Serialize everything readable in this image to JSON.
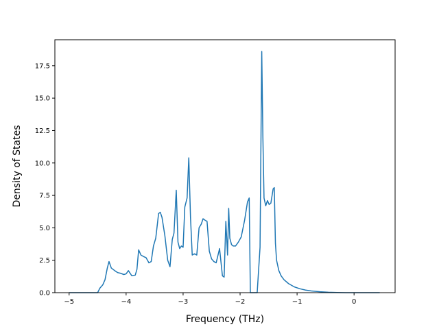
{
  "chart_data": {
    "type": "line",
    "title": "",
    "xlabel": "Frequency (THz)",
    "ylabel": "Density of States",
    "xlim": [
      -5.25,
      0.72
    ],
    "ylim": [
      0.0,
      19.5
    ],
    "grid": false,
    "legend": "none",
    "line_color": "#1f77b4",
    "x_ticks": [
      {
        "value": -5,
        "label": "−5"
      },
      {
        "value": -4,
        "label": "−4"
      },
      {
        "value": -3,
        "label": "−3"
      },
      {
        "value": -2,
        "label": "−2"
      },
      {
        "value": -1,
        "label": "−1"
      },
      {
        "value": 0,
        "label": "0"
      }
    ],
    "y_ticks": [
      {
        "value": 0.0,
        "label": "0.0"
      },
      {
        "value": 2.5,
        "label": "2.5"
      },
      {
        "value": 5.0,
        "label": "5.0"
      },
      {
        "value": 7.5,
        "label": "7.5"
      },
      {
        "value": 10.0,
        "label": "10.0"
      },
      {
        "value": 12.5,
        "label": "12.5"
      },
      {
        "value": 15.0,
        "label": "15.0"
      },
      {
        "value": 17.5,
        "label": "17.5"
      }
    ],
    "series": [
      {
        "x": [
          -5.0,
          -4.5,
          -4.46,
          -4.41,
          -4.37,
          -4.33,
          -4.3,
          -4.26,
          -4.2,
          -4.15,
          -4.1,
          -4.04,
          -4.0,
          -3.96,
          -3.9,
          -3.84,
          -3.81,
          -3.78,
          -3.74,
          -3.7,
          -3.65,
          -3.6,
          -3.56,
          -3.52,
          -3.48,
          -3.43,
          -3.4,
          -3.37,
          -3.32,
          -3.27,
          -3.23,
          -3.19,
          -3.16,
          -3.12,
          -3.09,
          -3.06,
          -3.03,
          -3.0,
          -2.97,
          -2.93,
          -2.9,
          -2.87,
          -2.84,
          -2.8,
          -2.76,
          -2.72,
          -2.68,
          -2.65,
          -2.62,
          -2.58,
          -2.54,
          -2.5,
          -2.46,
          -2.42,
          -2.36,
          -2.31,
          -2.28,
          -2.25,
          -2.22,
          -2.2,
          -2.18,
          -2.15,
          -2.12,
          -2.08,
          -2.03,
          -1.98,
          -1.92,
          -1.87,
          -1.84,
          -1.82,
          -1.8,
          -1.75,
          -1.7,
          -1.65,
          -1.62,
          -1.6,
          -1.58,
          -1.55,
          -1.52,
          -1.49,
          -1.46,
          -1.42,
          -1.4,
          -1.38,
          -1.36,
          -1.34,
          -1.32,
          -1.28,
          -1.23,
          -1.15,
          -1.05,
          -0.95,
          -0.85,
          -0.75,
          -0.6,
          -0.45,
          -0.3,
          -0.15,
          0.0,
          0.15,
          0.3,
          0.45
        ],
        "y": [
          0.0,
          0.0,
          0.35,
          0.6,
          1.0,
          1.9,
          2.4,
          1.9,
          1.7,
          1.55,
          1.5,
          1.4,
          1.45,
          1.7,
          1.3,
          1.35,
          1.8,
          3.3,
          2.9,
          2.8,
          2.7,
          2.3,
          2.4,
          3.6,
          4.2,
          6.1,
          6.2,
          5.8,
          4.4,
          2.5,
          2.0,
          4.1,
          4.6,
          7.9,
          3.9,
          3.4,
          3.6,
          3.5,
          6.6,
          7.3,
          10.4,
          5.8,
          2.9,
          3.0,
          2.9,
          5.0,
          5.3,
          5.7,
          5.6,
          5.5,
          3.2,
          2.6,
          2.4,
          2.3,
          3.4,
          1.3,
          1.2,
          5.5,
          2.9,
          6.5,
          4.2,
          3.7,
          3.6,
          3.6,
          3.9,
          4.3,
          5.6,
          7.0,
          7.3,
          0.0,
          0.0,
          0.0,
          0.0,
          3.5,
          18.6,
          12.0,
          7.3,
          6.7,
          7.1,
          6.8,
          6.9,
          8.0,
          8.1,
          3.8,
          2.5,
          2.1,
          1.7,
          1.3,
          1.0,
          0.7,
          0.45,
          0.3,
          0.2,
          0.13,
          0.07,
          0.03,
          0.01,
          0.0,
          0.0,
          0.0,
          0.0,
          0.0
        ]
      }
    ]
  }
}
